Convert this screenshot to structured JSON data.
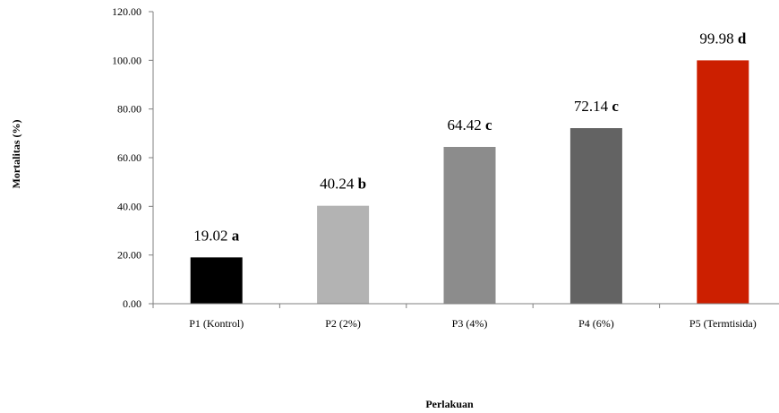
{
  "chart_data": {
    "type": "bar",
    "title": "",
    "xlabel": "Perlakuan",
    "ylabel": "Mortalitas (%)",
    "ylim": [
      0,
      120
    ],
    "yticks": [
      "0.00",
      "20.00",
      "40.00",
      "60.00",
      "80.00",
      "100.00",
      "120.00"
    ],
    "categories": [
      "P1 (Kontrol)",
      "P2 (2%)",
      "P3 (4%)",
      "P4 (6%)",
      "P5 (Termtisida)"
    ],
    "values": [
      19.02,
      40.24,
      64.42,
      72.14,
      99.98
    ],
    "value_labels": [
      "19.02",
      "40.24",
      "64.42",
      "72.14",
      "99.98"
    ],
    "letters": [
      "a",
      "b",
      "c",
      "c",
      "d"
    ],
    "colors": [
      "#000000",
      "#b3b3b3",
      "#8c8c8c",
      "#636363",
      "#cc1f00"
    ],
    "grid": false,
    "legend": "none"
  }
}
